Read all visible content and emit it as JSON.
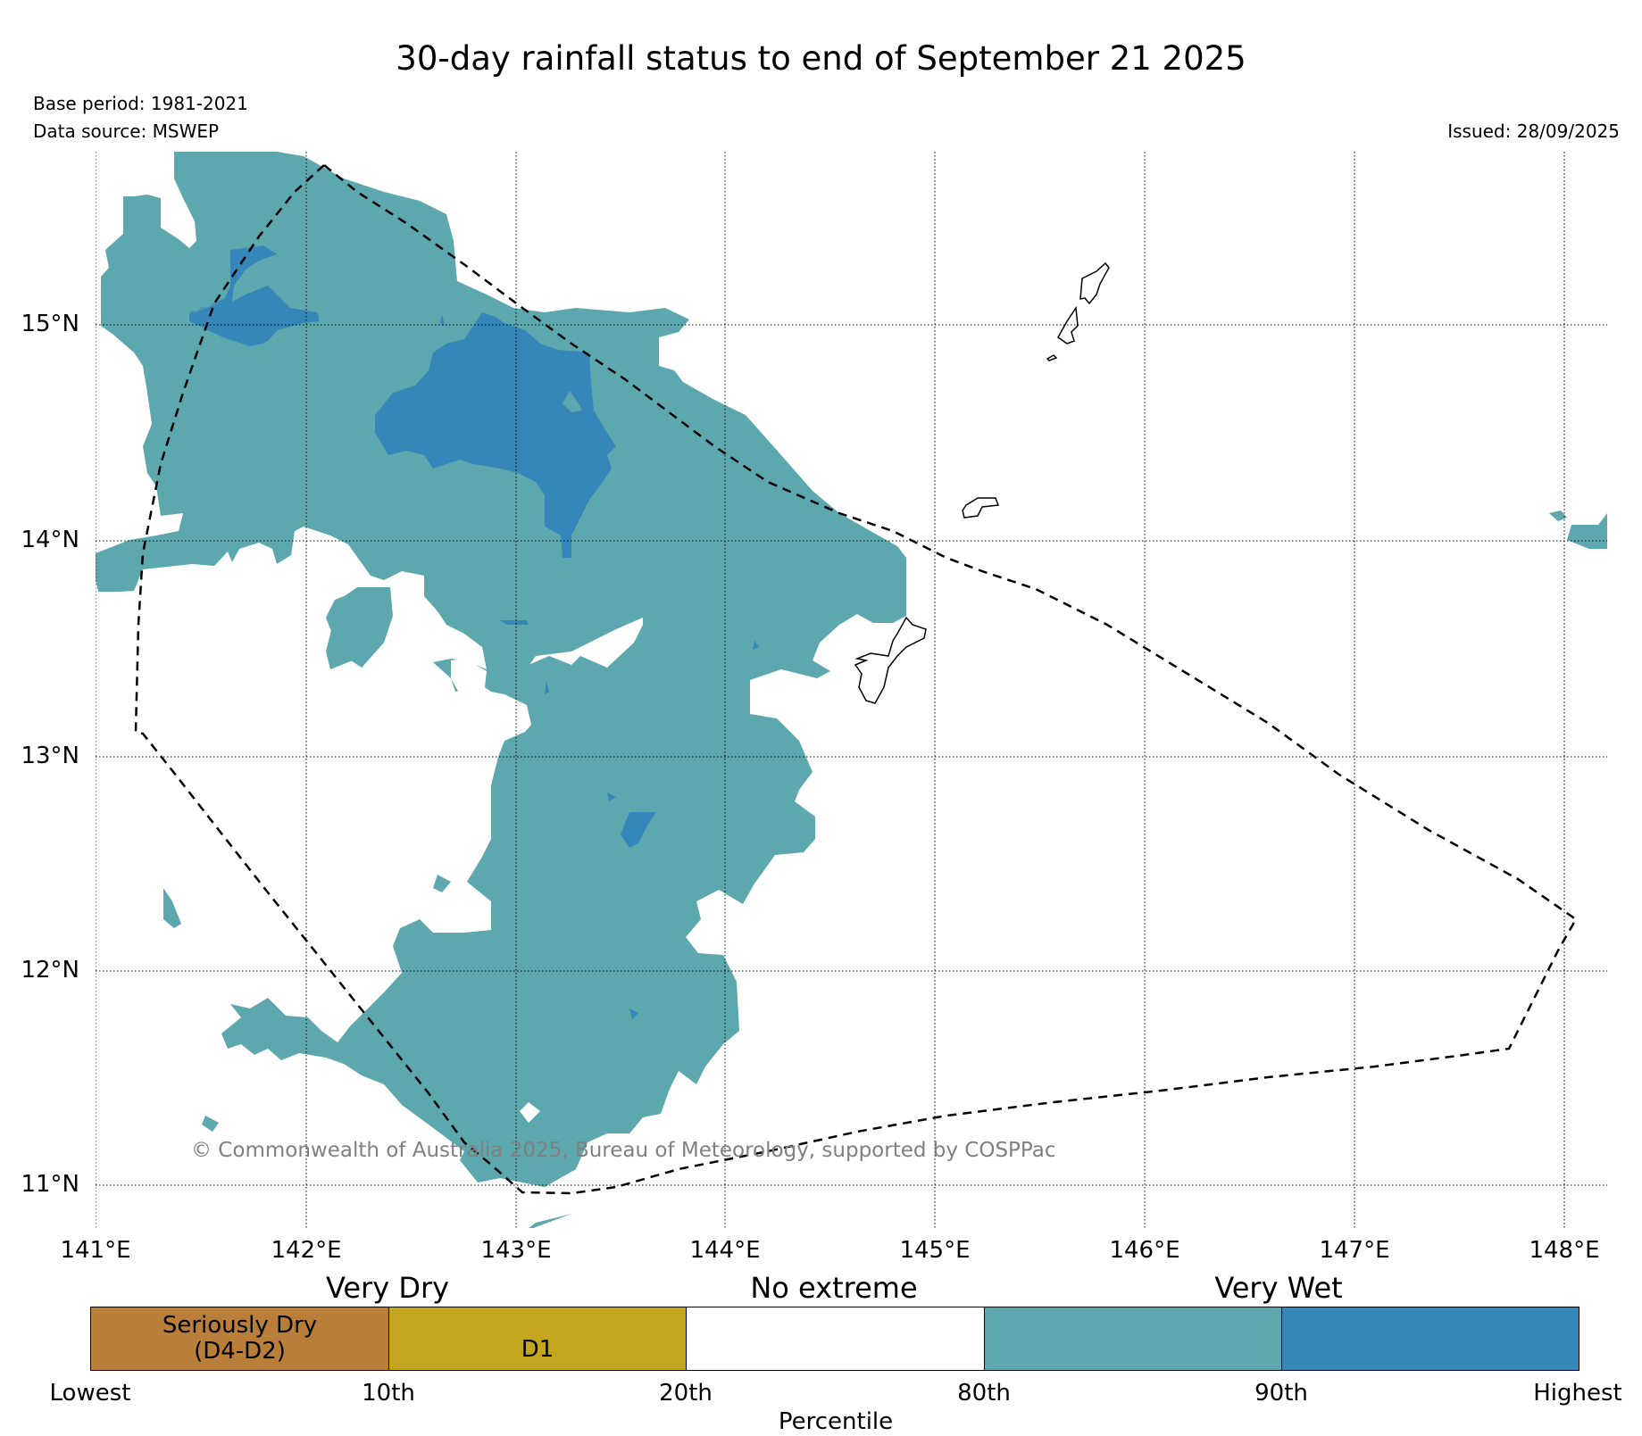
{
  "title": "30-day rainfall status to end of September 21 2025",
  "base_period": "Base period: 1981-2021",
  "data_source": "Data source: MSWEP",
  "issued": "Issued: 28/09/2025",
  "copyright": "© Commonwealth of Australia 2025, Bureau of Meteorology, supported by COSPPac",
  "map": {
    "lat_labels": [
      "15°N",
      "14°N",
      "13°N",
      "12°N",
      "11°N"
    ],
    "lon_labels": [
      "141°E",
      "142°E",
      "143°E",
      "144°E",
      "145°E",
      "146°E",
      "147°E",
      "148°E"
    ],
    "lon_range": [
      141,
      148.2
    ],
    "lat_range": [
      10.8,
      15.8
    ],
    "grid": true,
    "colors": {
      "very_wet": "#5da8ae",
      "highest": "#3687b9",
      "coastline": "#000000",
      "boundary": "#000000"
    }
  },
  "legend": {
    "headings": {
      "very_dry": "Very Dry",
      "no_extreme": "No extreme",
      "very_wet": "Very Wet"
    },
    "boxes": [
      {
        "label": "Seriously Dry (D4-D2)",
        "color": "#b97f3a"
      },
      {
        "label": "D1",
        "color": "#c4a51e"
      },
      {
        "label": "",
        "color": "#ffffff"
      },
      {
        "label": "",
        "color": "#5da8ae"
      },
      {
        "label": "",
        "color": "#3687b9"
      }
    ],
    "ticks": [
      "Lowest",
      "10th",
      "20th",
      "80th",
      "90th",
      "Highest"
    ],
    "axis_label": "Percentile"
  }
}
